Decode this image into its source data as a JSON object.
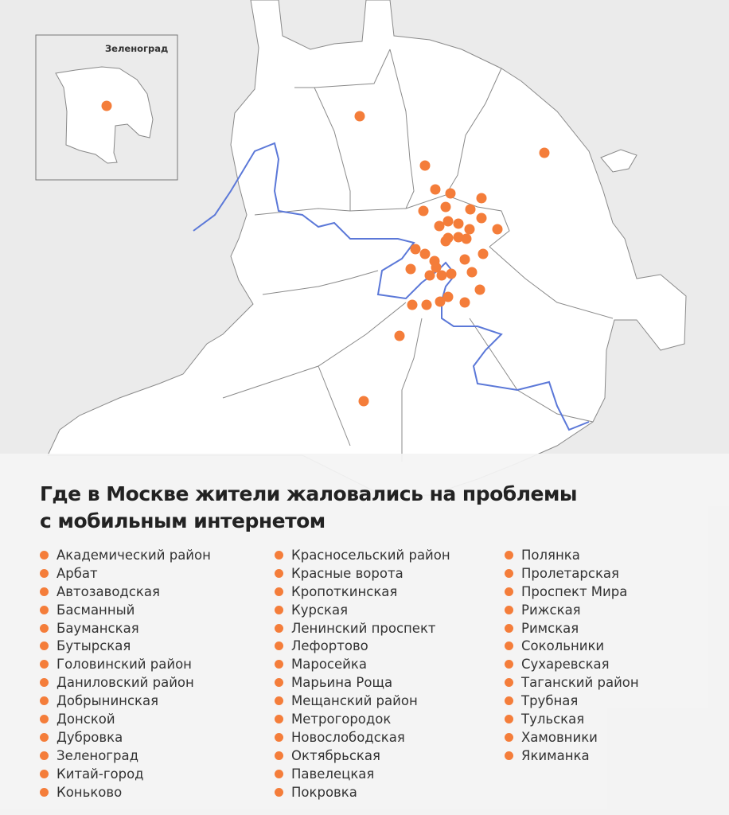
{
  "title": "Где в Москве жители жаловались на проблемы с мобильным интернетом",
  "title_lines": [
    "Где в Москве жители жаловались на проблемы",
    "с мобильным интернетом"
  ],
  "inset": {
    "label": "Зеленоград"
  },
  "colors": {
    "marker": "#f47d3a",
    "river": "#5b78d8",
    "land": "#ffffff",
    "background": "#ebebeb",
    "border": "#888888"
  },
  "legend": {
    "columns": [
      [
        "Академический район",
        "Арбат",
        "Автозаводская",
        "Басманный",
        "Бауманская",
        "Бутырская",
        "Головинский район",
        "Даниловский район",
        "Добрынинская",
        "Донской",
        "Дубровка",
        "Зеленоград",
        "Китай-город",
        "Коньково"
      ],
      [
        "Красносельский район",
        "Красные ворота",
        "Кропоткинская",
        "Курская",
        "Ленинский проспект",
        "Лефортово",
        "Маросейка",
        "Марьина Роща",
        "Мещанский район",
        "Метрогородок",
        "Новослободская",
        "Октябрьская",
        "Павелецкая",
        "Покровка"
      ],
      [
        "Полянка",
        "Пролетарская",
        "Проспект Мира",
        "Рижская",
        "Римская",
        "Сокольники",
        "Сухаревская",
        "Таганский район",
        "Трубная",
        "Тульская",
        "Хамовники",
        "Якиманка"
      ]
    ]
  }
}
